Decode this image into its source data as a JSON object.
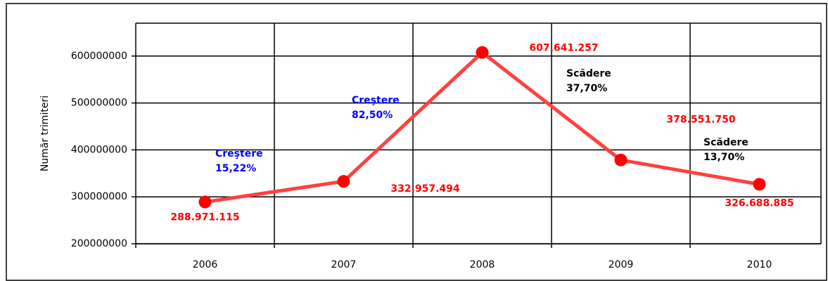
{
  "chart_data": {
    "type": "line",
    "categories": [
      "2006",
      "2007",
      "2008",
      "2009",
      "2010"
    ],
    "series": [
      {
        "name": "Număr trimiteri",
        "color": "#ff4040",
        "marker_color": "#ff0000",
        "values": [
          288971115,
          332957494,
          607641257,
          378551750,
          326688885
        ],
        "value_labels": [
          "288.971.115",
          "332.957.494",
          "607.641.257",
          "378.551.750",
          "326.688.885"
        ]
      }
    ],
    "y_label": "Număr trimiteri",
    "ylim": [
      200000000,
      670000000
    ],
    "yticks": [
      200000000,
      300000000,
      400000000,
      500000000,
      600000000
    ],
    "grid": true,
    "annotations": [
      {
        "lines": [
          "Creştere",
          "15,22%"
        ],
        "color": "#0000ff"
      },
      {
        "lines": [
          "Creştere",
          "82,50%"
        ],
        "color": "#0000ff"
      },
      {
        "lines": [
          "Scădere",
          "37,70%"
        ],
        "color": "#000000"
      },
      {
        "lines": [
          "Scădere",
          "13,70%"
        ],
        "color": "#000000"
      }
    ]
  }
}
